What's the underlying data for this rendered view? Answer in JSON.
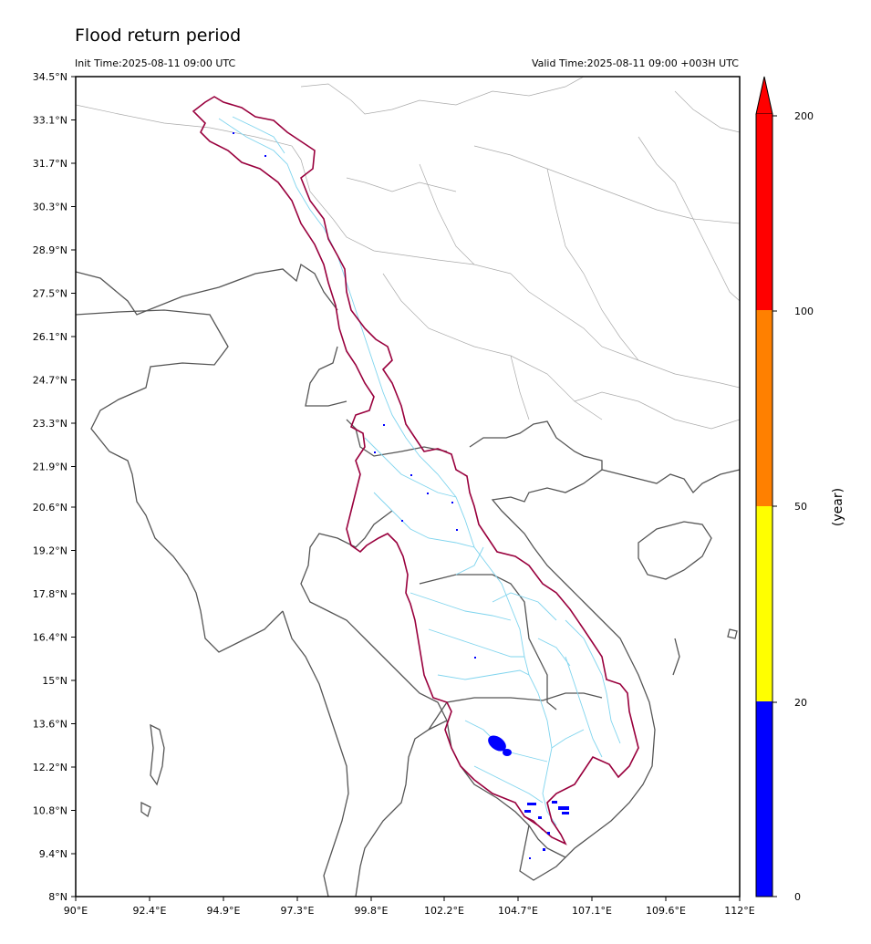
{
  "title": "Flood return period",
  "init_time": "Init Time:2025-08-11 09:00 UTC",
  "valid_time": "Valid Time:2025-08-11 09:00 +003H UTC",
  "lat_ticks": [
    "34.5°N",
    "33.1°N",
    "31.7°N",
    "30.3°N",
    "28.9°N",
    "27.5°N",
    "26.1°N",
    "24.7°N",
    "23.3°N",
    "21.9°N",
    "20.6°N",
    "19.2°N",
    "17.8°N",
    "16.4°N",
    "15°N",
    "13.6°N",
    "12.2°N",
    "10.8°N",
    "9.4°N",
    "8°N"
  ],
  "lon_ticks": [
    "90°E",
    "92.4°E",
    "94.9°E",
    "97.3°E",
    "99.8°E",
    "102.2°E",
    "104.7°E",
    "107.1°E",
    "109.6°E",
    "112°E"
  ],
  "colorbar": {
    "label": "(year)",
    "tick_labels": [
      "0",
      "20",
      "50",
      "100",
      "200"
    ],
    "bands": [
      {
        "from": 0,
        "to": 20,
        "color": "#0000ff"
      },
      {
        "from": 20,
        "to": 50,
        "color": "#ffff00"
      },
      {
        "from": 50,
        "to": 100,
        "color": "#ff8000"
      },
      {
        "from": 100,
        "to": 200,
        "color": "#ff0000"
      },
      {
        "from": 200,
        "to": "max",
        "color": "#ff0000"
      }
    ]
  },
  "colors": {
    "basin_outline": "#99003d",
    "rivers": "#7fd4ee",
    "coast_country": "#555555",
    "provinces": "#aaaaaa"
  }
}
